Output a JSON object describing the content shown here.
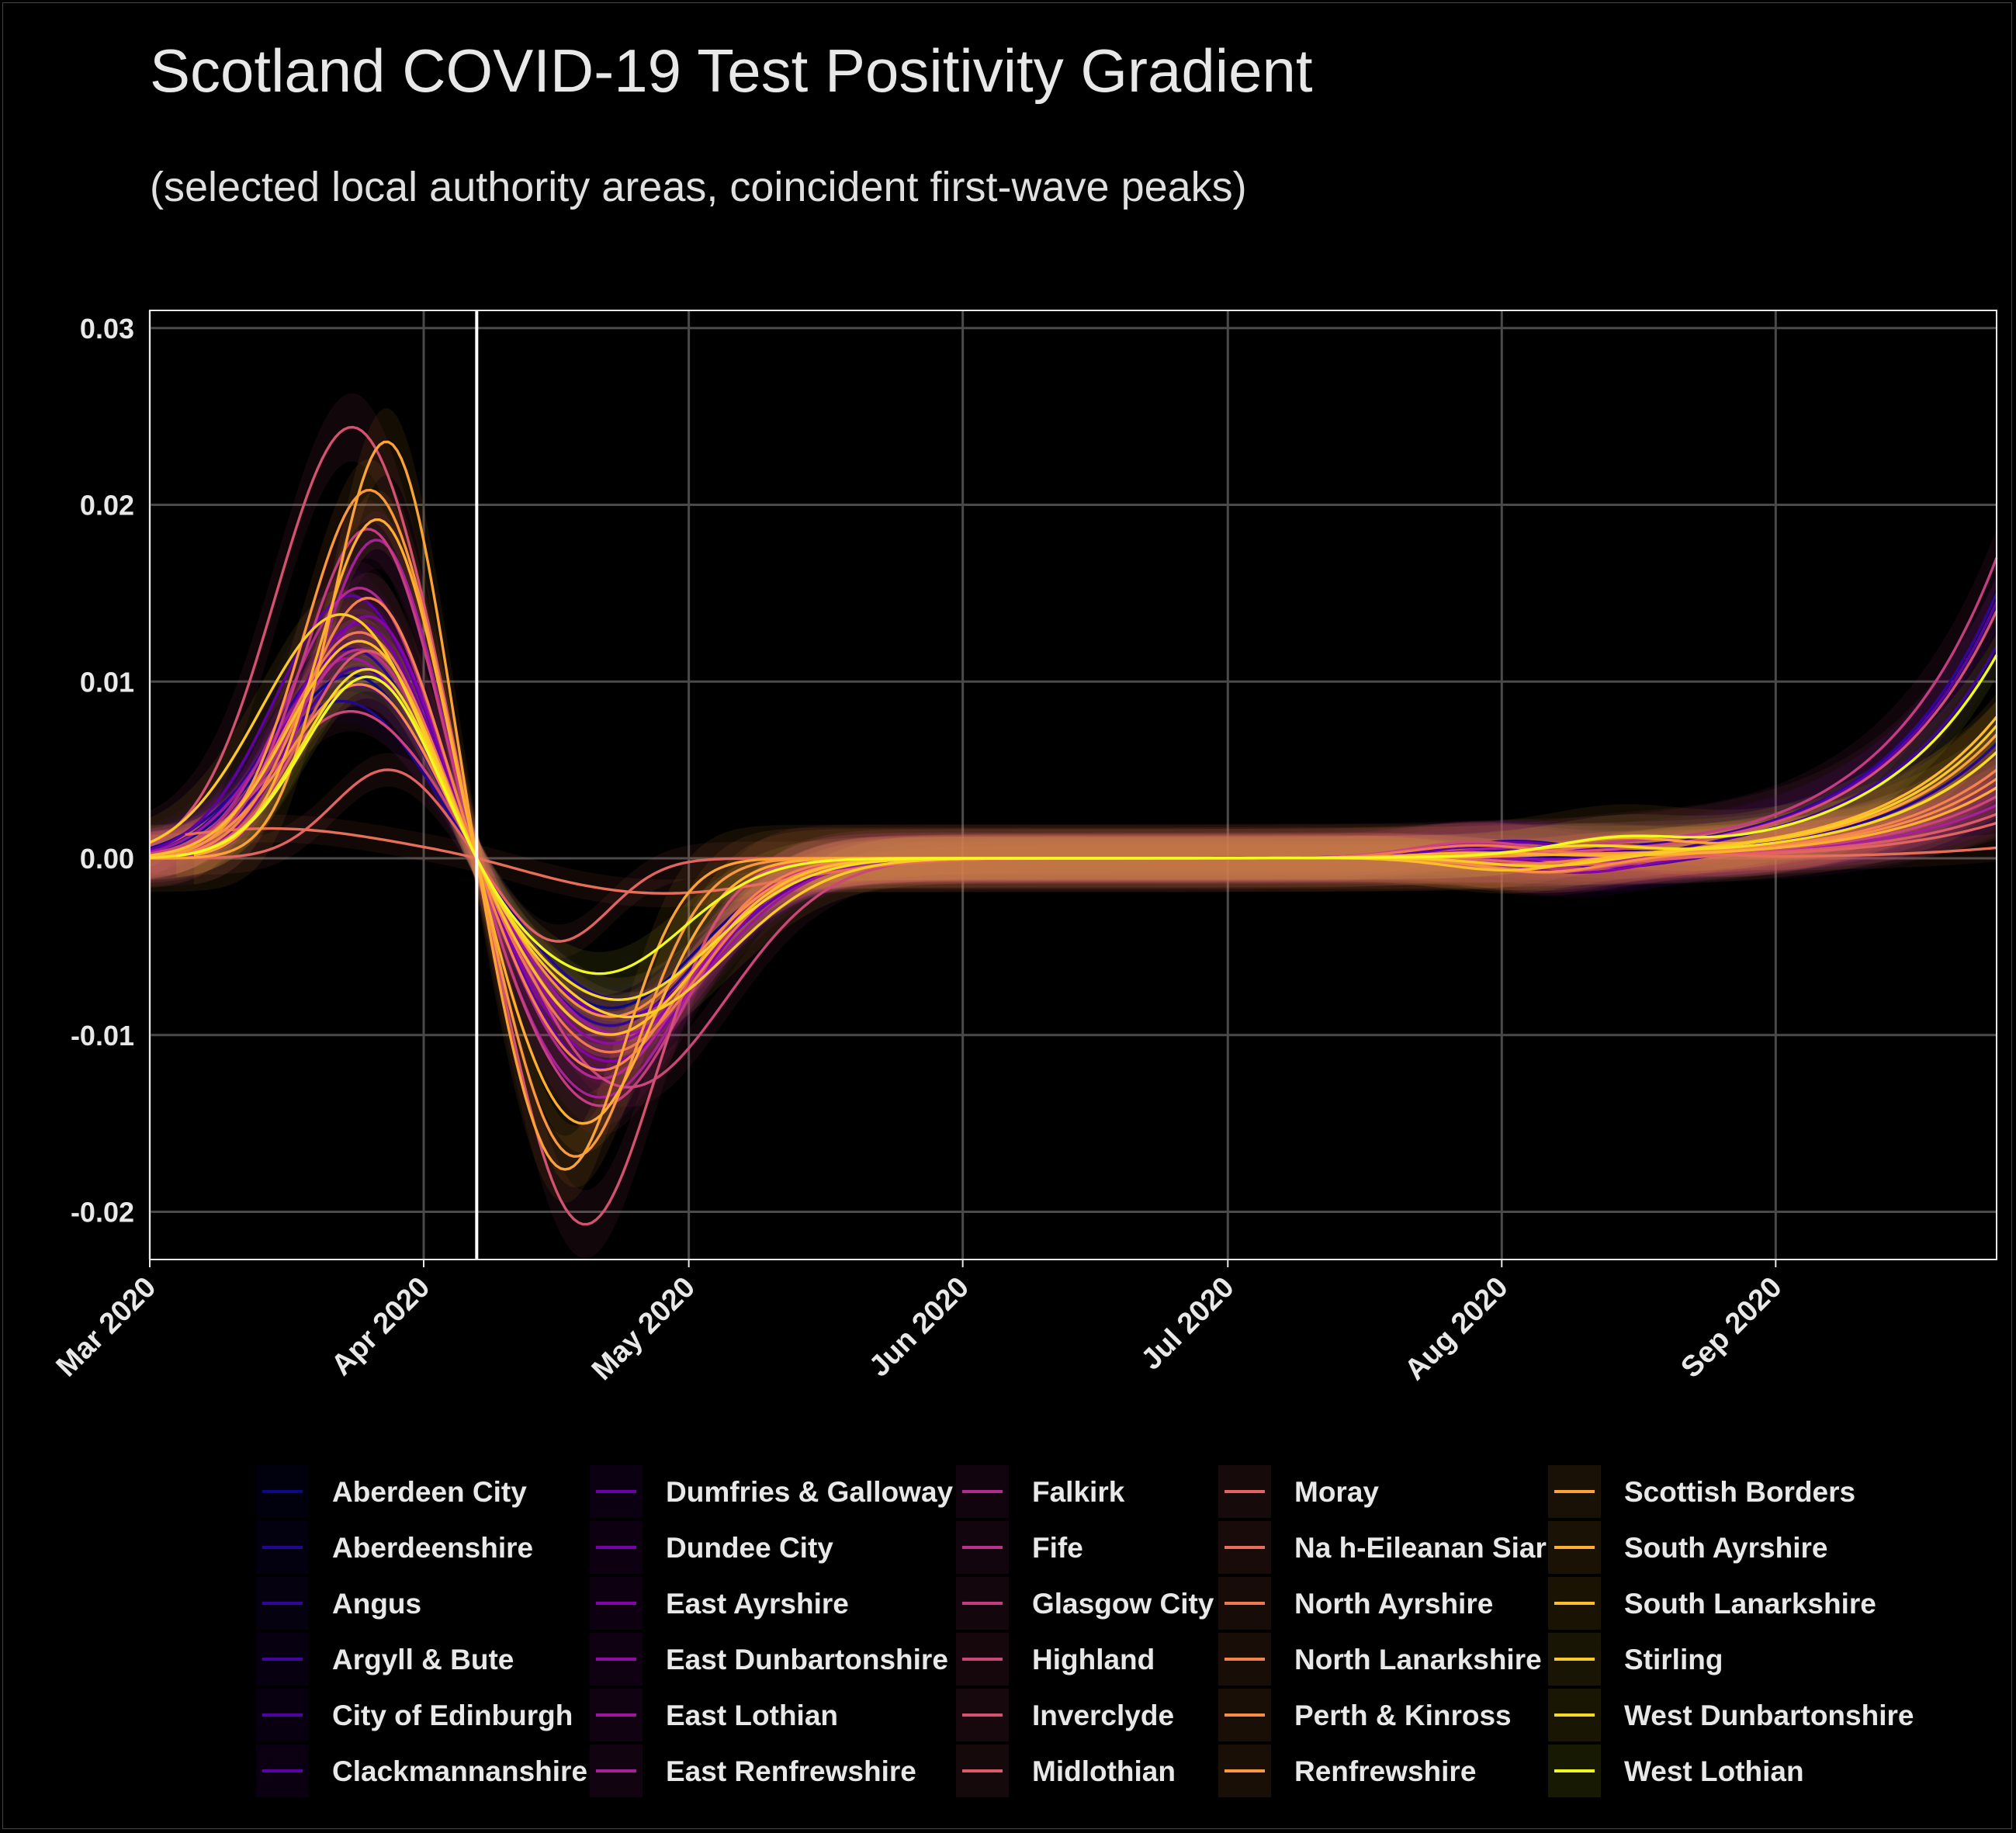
{
  "title": "Scotland COVID-19 Test Positivity Gradient",
  "subtitle": "(selected local authority areas, coincident first-wave peaks)",
  "chart_data": {
    "type": "line",
    "xlabel": "",
    "ylabel": "",
    "x_axis_type": "date",
    "xlim": [
      "2020-03-01",
      "2020-09-26"
    ],
    "ylim": [
      -0.0227,
      0.031
    ],
    "x_ticks": [
      {
        "date": "2020-03-01",
        "label": "Mar 2020"
      },
      {
        "date": "2020-04-01",
        "label": "Apr 2020"
      },
      {
        "date": "2020-05-01",
        "label": "May 2020"
      },
      {
        "date": "2020-06-01",
        "label": "Jun 2020"
      },
      {
        "date": "2020-07-01",
        "label": "Jul 2020"
      },
      {
        "date": "2020-08-01",
        "label": "Aug 2020"
      },
      {
        "date": "2020-09-01",
        "label": "Sep 2020"
      }
    ],
    "y_ticks": [
      {
        "value": 0.03,
        "label": "0.03"
      },
      {
        "value": 0.02,
        "label": "0.02"
      },
      {
        "value": 0.01,
        "label": "0.01"
      },
      {
        "value": 0.0,
        "label": "0.00"
      },
      {
        "value": -0.01,
        "label": "-0.01"
      },
      {
        "value": -0.02,
        "label": "-0.02"
      }
    ],
    "vertical_reference_line": "2020-04-07",
    "grid": true,
    "legend_position": "bottom",
    "series": [
      {
        "name": "Aberdeen City",
        "color": "#0d0887",
        "peak": 0.0105,
        "peak_date": "2020-03-24",
        "trough": -0.0085,
        "trough_date": "2020-04-22",
        "late": 0.003
      },
      {
        "name": "Aberdeenshire",
        "color": "#220690",
        "peak": 0.009,
        "peak_date": "2020-03-23",
        "trough": -0.008,
        "trough_date": "2020-04-23",
        "late": 0.0065
      },
      {
        "name": "Angus",
        "color": "#310597",
        "peak": 0.012,
        "peak_date": "2020-03-24",
        "trough": -0.0095,
        "trough_date": "2020-04-22",
        "late": 0.015
      },
      {
        "name": "Argyll & Bute",
        "color": "#41049d",
        "peak": 0.011,
        "peak_date": "2020-03-25",
        "trough": -0.009,
        "trough_date": "2020-04-23",
        "late": 0.012
      },
      {
        "name": "City of Edinburgh",
        "color": "#5102a3",
        "peak": 0.013,
        "peak_date": "2020-03-25",
        "trough": -0.01,
        "trough_date": "2020-04-22",
        "late": 0.004
      },
      {
        "name": "Clackmannanshire",
        "color": "#5f00a7",
        "peak": 0.015,
        "peak_date": "2020-03-24",
        "trough": -0.012,
        "trough_date": "2020-04-21",
        "late": 0.0145
      },
      {
        "name": "Dumfries & Galloway",
        "color": "#6a00a8",
        "peak": 0.01,
        "peak_date": "2020-03-25",
        "trough": -0.009,
        "trough_date": "2020-04-23",
        "late": 0.005
      },
      {
        "name": "Dundee City",
        "color": "#7701a8",
        "peak": 0.0135,
        "peak_date": "2020-03-25",
        "trough": -0.011,
        "trough_date": "2020-04-22",
        "late": 0.0045
      },
      {
        "name": "East Ayrshire",
        "color": "#8405a7",
        "peak": 0.014,
        "peak_date": "2020-03-26",
        "trough": -0.0115,
        "trough_date": "2020-04-22",
        "late": 0.0035
      },
      {
        "name": "East Dunbartonshire",
        "color": "#900da4",
        "peak": 0.0125,
        "peak_date": "2020-03-25",
        "trough": -0.0105,
        "trough_date": "2020-04-22",
        "late": 0.003
      },
      {
        "name": "East Lothian",
        "color": "#9c179e",
        "peak": 0.0115,
        "peak_date": "2020-03-24",
        "trough": -0.01,
        "trough_date": "2020-04-23",
        "late": 0.004
      },
      {
        "name": "East Renfrewshire",
        "color": "#a62098",
        "peak": 0.0185,
        "peak_date": "2020-03-27",
        "trough": -0.0135,
        "trough_date": "2020-04-21",
        "late": 0.003
      },
      {
        "name": "Falkirk",
        "color": "#b12a90",
        "peak": 0.0155,
        "peak_date": "2020-03-25",
        "trough": -0.0125,
        "trough_date": "2020-04-21",
        "late": 0.005
      },
      {
        "name": "Fife",
        "color": "#ba3388",
        "peak": 0.012,
        "peak_date": "2020-03-25",
        "trough": -0.01,
        "trough_date": "2020-04-22",
        "late": 0.006
      },
      {
        "name": "Glasgow City",
        "color": "#c33d80",
        "peak": 0.019,
        "peak_date": "2020-03-26",
        "trough": -0.014,
        "trough_date": "2020-04-21",
        "late": 0.017
      },
      {
        "name": "Highland",
        "color": "#cb4679",
        "peak": 0.0085,
        "peak_date": "2020-03-24",
        "trough": -0.013,
        "trough_date": "2020-04-24",
        "late": 0.0035
      },
      {
        "name": "Inverclyde",
        "color": "#d35171",
        "peak": 0.0245,
        "peak_date": "2020-03-24",
        "trough": -0.021,
        "trough_date": "2020-04-19",
        "late": 0.014
      },
      {
        "name": "Midlothian",
        "color": "#da5b69",
        "peak": 0.012,
        "peak_date": "2020-03-26",
        "trough": -0.01,
        "trough_date": "2020-04-22",
        "late": 0.0025
      },
      {
        "name": "Moray",
        "color": "#e16462",
        "peak": 0.005,
        "peak_date": "2020-03-28",
        "trough": -0.0048,
        "trough_date": "2020-04-16",
        "late": 0.002
      },
      {
        "name": "Na h-Eileanan Siar",
        "color": "#e76f5a",
        "peak": 0.0017,
        "peak_date": "2020-03-15",
        "trough": -0.002,
        "trough_date": "2020-04-28",
        "late": 0.0006
      },
      {
        "name": "North Ayrshire",
        "color": "#ed7953",
        "peak": 0.013,
        "peak_date": "2020-03-25",
        "trough": -0.011,
        "trough_date": "2020-04-22",
        "late": 0.004
      },
      {
        "name": "North Lanarkshire",
        "color": "#f2844b",
        "peak": 0.015,
        "peak_date": "2020-03-26",
        "trough": -0.012,
        "trough_date": "2020-04-21",
        "late": 0.005
      },
      {
        "name": "Perth & Kinross",
        "color": "#f68f44",
        "peak": 0.01,
        "peak_date": "2020-03-25",
        "trough": -0.009,
        "trough_date": "2020-04-22",
        "late": 0.0045
      },
      {
        "name": "Renfrewshire",
        "color": "#f9983e",
        "peak": 0.021,
        "peak_date": "2020-03-26",
        "trough": -0.017,
        "trough_date": "2020-04-18",
        "late": 0.006
      },
      {
        "name": "Scottish Borders",
        "color": "#fca338",
        "peak": 0.024,
        "peak_date": "2020-03-28",
        "trough": -0.0175,
        "trough_date": "2020-04-17",
        "late": 0.007
      },
      {
        "name": "South Ayrshire",
        "color": "#feaf32",
        "peak": 0.0195,
        "peak_date": "2020-03-27",
        "trough": -0.015,
        "trough_date": "2020-04-19",
        "late": 0.004
      },
      {
        "name": "South Lanarkshire",
        "color": "#febd2a",
        "peak": 0.0125,
        "peak_date": "2020-03-25",
        "trough": -0.01,
        "trough_date": "2020-04-22",
        "late": 0.008
      },
      {
        "name": "Stirling",
        "color": "#facb26",
        "peak": 0.014,
        "peak_date": "2020-03-23",
        "trough": -0.009,
        "trough_date": "2020-04-24",
        "late": 0.0075
      },
      {
        "name": "West Dunbartonshire",
        "color": "#f6da23",
        "peak": 0.011,
        "peak_date": "2020-03-26",
        "trough": -0.008,
        "trough_date": "2020-04-23",
        "late": 0.006
      },
      {
        "name": "West Lothian",
        "color": "#f0f921",
        "peak": 0.0105,
        "peak_date": "2020-03-26",
        "trough": -0.0065,
        "trough_date": "2020-04-21",
        "late": 0.0115
      }
    ]
  }
}
